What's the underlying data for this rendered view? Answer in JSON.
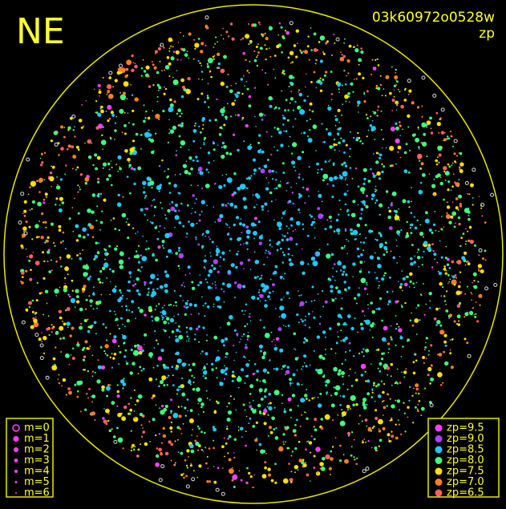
{
  "label": "NE",
  "image_id": "03k60972o0528w",
  "metric": "zp",
  "magnitude_legend": [
    {
      "label": "m=0"
    },
    {
      "label": "m=1"
    },
    {
      "label": "m=2"
    },
    {
      "label": "m=3"
    },
    {
      "label": "m=4"
    },
    {
      "label": "m=5"
    },
    {
      "label": "m=6"
    }
  ],
  "zp_legend": [
    {
      "label": "zp=9.5",
      "color": "#ff40ff"
    },
    {
      "label": "zp=9.0",
      "color": "#b040ff"
    },
    {
      "label": "zp=8.5",
      "color": "#20c8ff"
    },
    {
      "label": "zp=8.0",
      "color": "#40ff80"
    },
    {
      "label": "zp=7.5",
      "color": "#ffe000"
    },
    {
      "label": "zp=7.0",
      "color": "#ff8020"
    },
    {
      "label": "zp=6.5",
      "color": "#ff6060"
    }
  ]
}
